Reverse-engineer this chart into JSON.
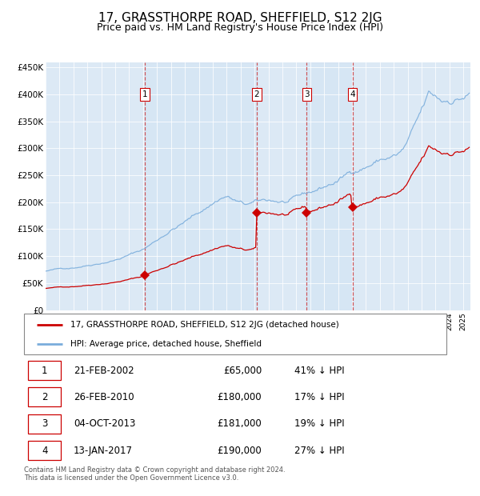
{
  "title": "17, GRASSTHORPE ROAD, SHEFFIELD, S12 2JG",
  "subtitle": "Price paid vs. HM Land Registry's House Price Index (HPI)",
  "title_fontsize": 11,
  "subtitle_fontsize": 9,
  "background_color": "#ffffff",
  "plot_bg_color": "#dce9f5",
  "ylim": [
    0,
    460000
  ],
  "yticks": [
    0,
    50000,
    100000,
    150000,
    200000,
    250000,
    300000,
    350000,
    400000,
    450000
  ],
  "ytick_labels": [
    "£0",
    "£50K",
    "£100K",
    "£150K",
    "£200K",
    "£250K",
    "£300K",
    "£350K",
    "£400K",
    "£450K"
  ],
  "xlim_start": 1995.0,
  "xlim_end": 2025.5,
  "legend_entries": [
    "17, GRASSTHORPE ROAD, SHEFFIELD, S12 2JG (detached house)",
    "HPI: Average price, detached house, Sheffield"
  ],
  "legend_colors": [
    "#cc0000",
    "#7aaddc"
  ],
  "transactions": [
    {
      "num": 1,
      "date_str": "21-FEB-2002",
      "date_x": 2002.13,
      "price": 65000,
      "pct": "41%"
    },
    {
      "num": 2,
      "date_str": "26-FEB-2010",
      "date_x": 2010.15,
      "price": 180000,
      "pct": "17%"
    },
    {
      "num": 3,
      "date_str": "04-OCT-2013",
      "date_x": 2013.75,
      "price": 181000,
      "pct": "19%"
    },
    {
      "num": 4,
      "date_str": "13-JAN-2017",
      "date_x": 2017.03,
      "price": 190000,
      "pct": "27%"
    }
  ],
  "footer_text": "Contains HM Land Registry data © Crown copyright and database right 2024.\nThis data is licensed under the Open Government Licence v3.0.",
  "table_rows": [
    [
      "1",
      "21-FEB-2002",
      "£65,000",
      "41% ↓ HPI"
    ],
    [
      "2",
      "26-FEB-2010",
      "£180,000",
      "17% ↓ HPI"
    ],
    [
      "3",
      "04-OCT-2013",
      "£181,000",
      "19% ↓ HPI"
    ],
    [
      "4",
      "13-JAN-2017",
      "£190,000",
      "27% ↓ HPI"
    ]
  ]
}
